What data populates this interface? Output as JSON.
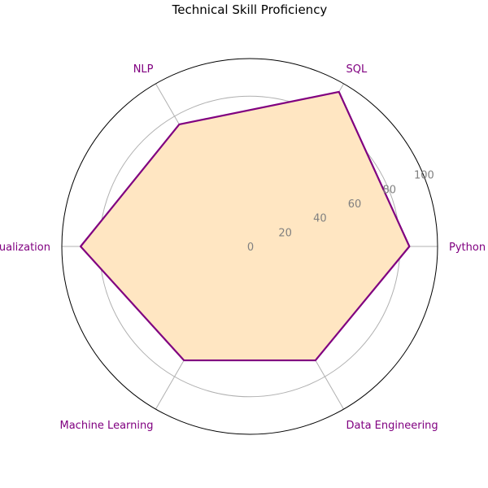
{
  "chart_data": {
    "type": "radar",
    "title": "Technical Skill Proficiency",
    "categories": [
      "Python",
      "SQL",
      "NLP",
      "Data Visualization",
      "Machine Learning",
      "Data Engineering"
    ],
    "series": [
      {
        "values": [
          85,
          95,
          75,
          90,
          70,
          70
        ]
      }
    ],
    "rlim": [
      0,
      100
    ],
    "r_ticks": [
      "0",
      "20",
      "40",
      "60",
      "80",
      "100"
    ],
    "grid": true,
    "colors": {
      "line": "#800080",
      "fill": "#ffe6c2",
      "grid": "#b0b0b0",
      "label": "#800080",
      "tick": "#808080"
    }
  }
}
